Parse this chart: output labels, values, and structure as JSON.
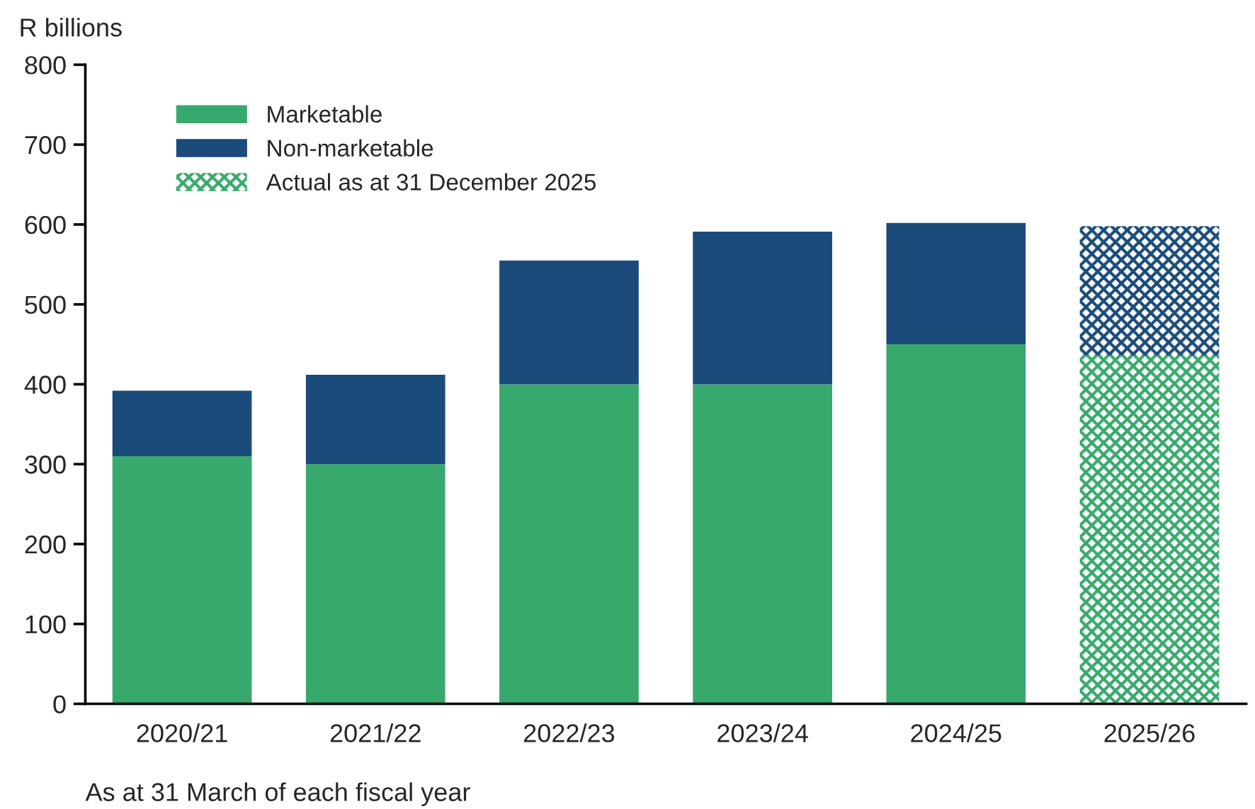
{
  "chart_data": {
    "type": "bar",
    "stacked": true,
    "ylabel": "R billions",
    "categories": [
      "2020/21",
      "2021/22",
      "2022/23",
      "2023/24",
      "2024/25",
      "2025/26"
    ],
    "series": [
      {
        "name": "Marketable",
        "color": "#38a96d",
        "values": [
          310,
          300,
          400,
          400,
          450,
          null
        ]
      },
      {
        "name": "Non-marketable",
        "color": "#1a4b7a",
        "values": [
          82,
          112,
          155,
          191,
          152,
          null
        ]
      },
      {
        "name": "Actual as at 31 December 2025",
        "color": "#38a96d",
        "values": [
          null,
          null,
          null,
          null,
          null,
          436
        ]
      },
      {
        "color": "#1a4b7a",
        "values": [
          null,
          null,
          null,
          null,
          null,
          162
        ]
      }
    ],
    "ylim": [
      0,
      800
    ],
    "yticks": [
      0,
      100,
      200,
      300,
      400,
      500,
      600,
      700,
      800
    ],
    "grid": false,
    "legend": "top left",
    "annotations": [
      "As at 31 March of each fiscal year"
    ]
  }
}
